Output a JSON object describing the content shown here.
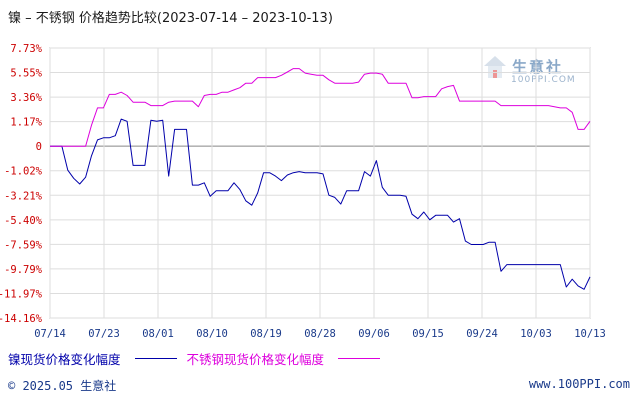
{
  "page": {
    "title": "镍 – 不锈钢 价格趋势比较(2023-07-14 – 2023-10-13)",
    "footer_left": "© 2025.05 生意社",
    "footer_right": "www.100PPI.com",
    "watermark_text": "生意社",
    "watermark_sub": "100PPI.COM"
  },
  "chart_data": {
    "type": "line",
    "title": "镍 – 不锈钢 价格趋势比较(2023-07-14 – 2023-10-13)",
    "xlabel": "",
    "ylabel": "",
    "x_tick_labels": [
      "07/14",
      "07/23",
      "08/01",
      "08/10",
      "08/19",
      "08/28",
      "09/06",
      "09/15",
      "09/24",
      "10/03",
      "10/13"
    ],
    "y_tick_labels": [
      "7.73%",
      "5.55%",
      "3.36%",
      "1.17%",
      "0",
      "-1.02%",
      "-3.21%",
      "-5.40%",
      "-7.59%",
      "-9.79%",
      "-11.97%",
      "-14.16%"
    ],
    "y_tick_values": [
      7.73,
      5.55,
      3.36,
      1.17,
      0,
      -1.02,
      -3.21,
      -5.4,
      -7.59,
      -9.79,
      -11.97,
      -14.16
    ],
    "ylim": [
      -14.16,
      7.73
    ],
    "x_range_days": [
      0,
      91
    ],
    "grid": true,
    "legend_position": "bottom",
    "series": [
      {
        "name": "镍现货价格变化幅度",
        "color": "#0000aa",
        "points": [
          [
            0,
            0
          ],
          [
            2,
            0
          ],
          [
            3,
            -1
          ],
          [
            4,
            -1.7
          ],
          [
            5,
            -2.2
          ],
          [
            6,
            -1.6
          ],
          [
            7,
            -0.4
          ],
          [
            8,
            0.3
          ],
          [
            9,
            0.4
          ],
          [
            10,
            0.4
          ],
          [
            11,
            0.5
          ],
          [
            12,
            1.4
          ],
          [
            13,
            1.2
          ],
          [
            14,
            -0.8
          ],
          [
            16,
            -0.8
          ],
          [
            17,
            1.3
          ],
          [
            18,
            1.2
          ],
          [
            19,
            1.3
          ],
          [
            20,
            -1.5
          ],
          [
            21,
            0.8
          ],
          [
            22,
            0.8
          ],
          [
            23,
            0.8
          ],
          [
            24,
            -2.3
          ],
          [
            25,
            -2.3
          ],
          [
            26,
            -2.1
          ],
          [
            27,
            -3.3
          ],
          [
            28,
            -2.8
          ],
          [
            30,
            -2.8
          ],
          [
            31,
            -2.1
          ],
          [
            32,
            -2.7
          ],
          [
            33,
            -3.7
          ],
          [
            34,
            -4.1
          ],
          [
            35,
            -3.0
          ],
          [
            36,
            -1.2
          ],
          [
            37,
            -1.2
          ],
          [
            38,
            -1.5
          ],
          [
            39,
            -1.9
          ],
          [
            40,
            -1.4
          ],
          [
            41,
            -1.2
          ],
          [
            42,
            -1.1
          ],
          [
            43,
            -1.2
          ],
          [
            44,
            -1.2
          ],
          [
            45,
            -1.2
          ],
          [
            46,
            -1.3
          ],
          [
            47,
            -3.2
          ],
          [
            48,
            -3.4
          ],
          [
            49,
            -4.0
          ],
          [
            50,
            -2.8
          ],
          [
            51,
            -2.8
          ],
          [
            52,
            -2.8
          ],
          [
            53,
            -1.1
          ],
          [
            54,
            -1.5
          ],
          [
            55,
            -0.6
          ],
          [
            56,
            -2.5
          ],
          [
            57,
            -3.2
          ],
          [
            58,
            -3.2
          ],
          [
            59,
            -3.2
          ],
          [
            60,
            -3.3
          ],
          [
            61,
            -4.9
          ],
          [
            62,
            -5.3
          ],
          [
            63,
            -4.7
          ],
          [
            64,
            -5.4
          ],
          [
            65,
            -5.0
          ],
          [
            66,
            -5.0
          ],
          [
            67,
            -5.0
          ],
          [
            68,
            -5.6
          ],
          [
            69,
            -5.3
          ],
          [
            70,
            -7.3
          ],
          [
            71,
            -7.6
          ],
          [
            72,
            -7.6
          ],
          [
            73,
            -7.6
          ],
          [
            74,
            -7.4
          ],
          [
            75,
            -7.4
          ],
          [
            76,
            -10.0
          ],
          [
            77,
            -9.4
          ],
          [
            78,
            -9.4
          ],
          [
            79,
            -9.4
          ],
          [
            84,
            -9.4
          ],
          [
            86,
            -9.4
          ],
          [
            87,
            -11.4
          ],
          [
            88,
            -10.7
          ],
          [
            89,
            -11.3
          ],
          [
            90,
            -11.6
          ],
          [
            91,
            -10.5
          ]
        ]
      },
      {
        "name": "不锈钢现货价格变化幅度",
        "color": "#dd00dd",
        "points": [
          [
            0,
            0
          ],
          [
            6,
            0
          ],
          [
            7,
            1.0
          ],
          [
            8,
            2.4
          ],
          [
            9,
            2.4
          ],
          [
            10,
            3.6
          ],
          [
            11,
            3.6
          ],
          [
            12,
            3.8
          ],
          [
            13,
            3.5
          ],
          [
            14,
            2.9
          ],
          [
            15,
            2.9
          ],
          [
            16,
            2.9
          ],
          [
            17,
            2.6
          ],
          [
            18,
            2.6
          ],
          [
            19,
            2.6
          ],
          [
            20,
            2.9
          ],
          [
            21,
            3.0
          ],
          [
            22,
            3.0
          ],
          [
            23,
            3.0
          ],
          [
            24,
            3.0
          ],
          [
            25,
            2.5
          ],
          [
            26,
            3.5
          ],
          [
            27,
            3.6
          ],
          [
            28,
            3.6
          ],
          [
            29,
            3.8
          ],
          [
            30,
            3.8
          ],
          [
            31,
            4.0
          ],
          [
            32,
            4.2
          ],
          [
            33,
            4.6
          ],
          [
            34,
            4.6
          ],
          [
            35,
            5.1
          ],
          [
            36,
            5.1
          ],
          [
            37,
            5.1
          ],
          [
            38,
            5.1
          ],
          [
            39,
            5.3
          ],
          [
            40,
            5.6
          ],
          [
            41,
            5.9
          ],
          [
            42,
            5.9
          ],
          [
            43,
            5.5
          ],
          [
            44,
            5.4
          ],
          [
            45,
            5.3
          ],
          [
            46,
            5.3
          ],
          [
            47,
            4.9
          ],
          [
            48,
            4.6
          ],
          [
            49,
            4.6
          ],
          [
            50,
            4.6
          ],
          [
            51,
            4.6
          ],
          [
            52,
            4.7
          ],
          [
            53,
            5.4
          ],
          [
            54,
            5.5
          ],
          [
            55,
            5.5
          ],
          [
            56,
            5.4
          ],
          [
            57,
            4.6
          ],
          [
            58,
            4.6
          ],
          [
            59,
            4.6
          ],
          [
            60,
            4.6
          ],
          [
            61,
            3.3
          ],
          [
            62,
            3.3
          ],
          [
            63,
            3.4
          ],
          [
            64,
            3.4
          ],
          [
            65,
            3.4
          ],
          [
            66,
            4.1
          ],
          [
            67,
            4.3
          ],
          [
            68,
            4.4
          ],
          [
            69,
            3.0
          ],
          [
            70,
            3.0
          ],
          [
            71,
            3.0
          ],
          [
            72,
            3.0
          ],
          [
            73,
            3.0
          ],
          [
            74,
            3.0
          ],
          [
            75,
            3.0
          ],
          [
            76,
            2.6
          ],
          [
            84,
            2.6
          ],
          [
            85,
            2.5
          ],
          [
            86,
            2.4
          ],
          [
            87,
            2.4
          ],
          [
            88,
            2.0
          ],
          [
            89,
            0.8
          ],
          [
            90,
            0.8
          ],
          [
            91,
            1.2
          ]
        ]
      }
    ]
  }
}
